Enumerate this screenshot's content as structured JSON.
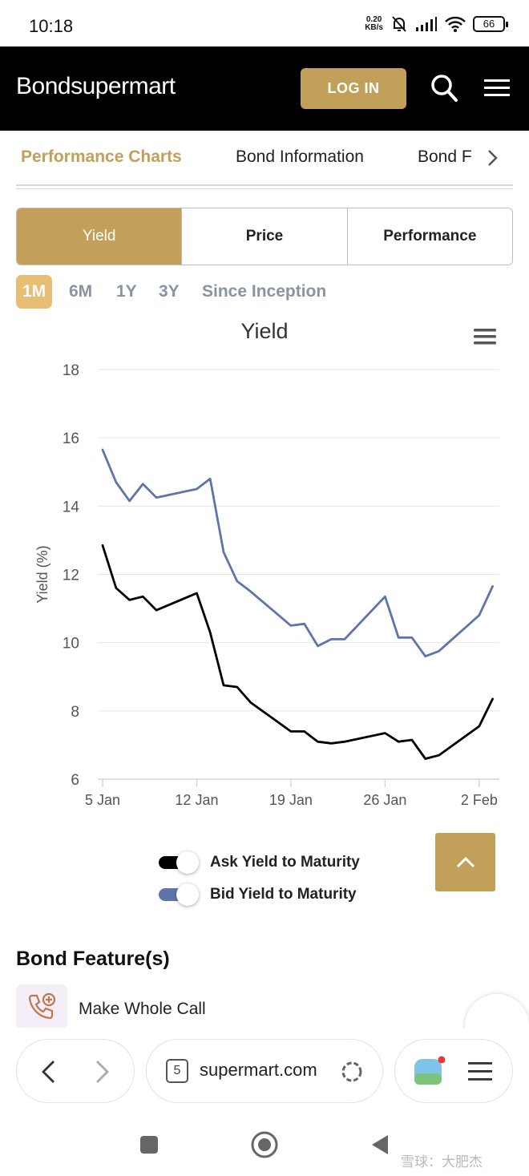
{
  "status_bar": {
    "time": "10:18",
    "net_speed_value": "0.20",
    "net_speed_unit": "KB/s",
    "battery": "66"
  },
  "header": {
    "logo": "Bondsupermart",
    "login_label": "LOG IN",
    "search_icon": "search-icon",
    "menu_icon": "hamburger-menu-icon"
  },
  "section_tabs": [
    {
      "label": "Performance Charts",
      "active": true
    },
    {
      "label": "Bond Information",
      "active": false
    },
    {
      "label": "Bond F",
      "active": false
    }
  ],
  "chart_types": [
    {
      "label": "Yield",
      "active": true
    },
    {
      "label": "Price",
      "active": false
    },
    {
      "label": "Performance",
      "active": false
    }
  ],
  "ranges": [
    {
      "label": "1M",
      "active": true
    },
    {
      "label": "6M",
      "active": false
    },
    {
      "label": "1Y",
      "active": false
    },
    {
      "label": "3Y",
      "active": false
    },
    {
      "label": "Since Inception",
      "active": false
    }
  ],
  "colors": {
    "accent": "#c2a05a",
    "range_active": "#e6bf74",
    "ask_series": "#000000",
    "bid_series": "#5f74a8"
  },
  "chart_data": {
    "type": "line",
    "title": "Yield",
    "ylabel": "Yield (%)",
    "xlabel": "",
    "ylim": [
      6,
      18
    ],
    "yticks": [
      6,
      8,
      10,
      12,
      14,
      16,
      18
    ],
    "xlim": [
      5,
      34.5
    ],
    "xticks": [
      {
        "day": 5,
        "label": "5 Jan"
      },
      {
        "day": 12,
        "label": "12 Jan"
      },
      {
        "day": 19,
        "label": "19 Jan"
      },
      {
        "day": 26,
        "label": "26 Jan"
      },
      {
        "day": 33,
        "label": "2 Feb"
      }
    ],
    "grid": true,
    "legend_position": "bottom-center",
    "series": [
      {
        "name": "Ask Yield to Maturity",
        "color": "#000000",
        "x": [
          5,
          6,
          7,
          8,
          9,
          12,
          13,
          14,
          15,
          16,
          19,
          20,
          21,
          22,
          23,
          26,
          27,
          28,
          29,
          30,
          33,
          34
        ],
        "values": [
          12.85,
          11.6,
          11.25,
          11.35,
          10.95,
          11.45,
          10.3,
          8.75,
          8.7,
          8.25,
          7.4,
          7.4,
          7.1,
          7.05,
          7.1,
          7.35,
          7.1,
          7.15,
          6.6,
          6.7,
          7.55,
          8.35
        ]
      },
      {
        "name": "Bid Yield to Maturity",
        "color": "#5f74a8",
        "x": [
          5,
          6,
          7,
          8,
          9,
          12,
          13,
          14,
          15,
          16,
          19,
          20,
          21,
          22,
          23,
          26,
          27,
          28,
          29,
          30,
          33,
          34
        ],
        "values": [
          15.65,
          14.7,
          14.15,
          14.65,
          14.25,
          14.5,
          14.8,
          12.65,
          11.8,
          11.5,
          10.5,
          10.55,
          9.9,
          10.1,
          10.1,
          11.35,
          10.15,
          10.15,
          9.6,
          9.75,
          10.8,
          11.65
        ]
      }
    ]
  },
  "features": {
    "title": "Bond Feature(s)",
    "items": [
      {
        "label": "Make Whole Call",
        "icon": "phone-plus-icon"
      }
    ]
  },
  "browser": {
    "tab_count": "5",
    "url": "supermart.com"
  },
  "watermark": "雪球：大肥杰"
}
